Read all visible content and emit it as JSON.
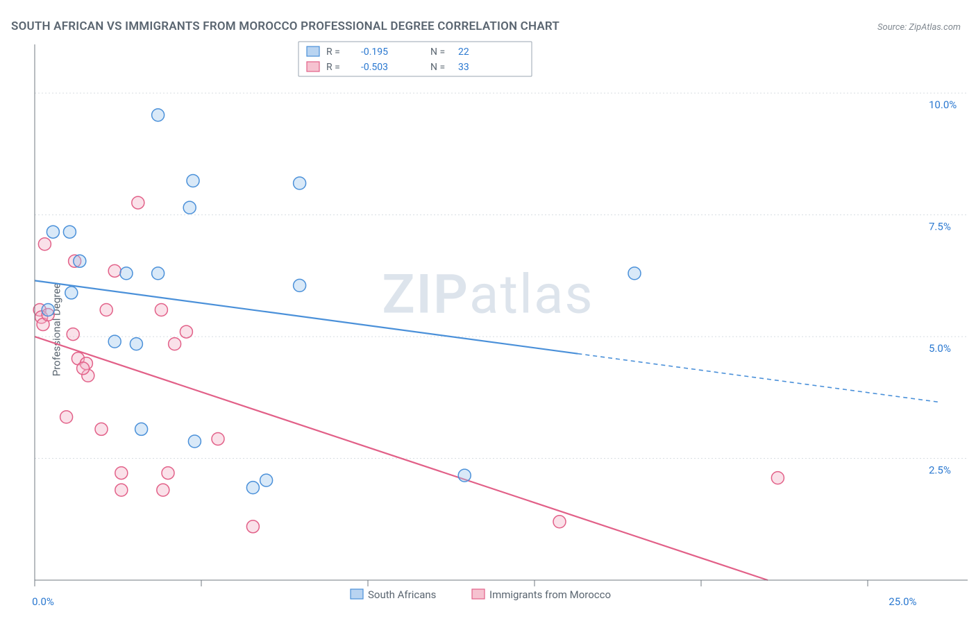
{
  "title": "SOUTH AFRICAN VS IMMIGRANTS FROM MOROCCO PROFESSIONAL DEGREE CORRELATION CHART",
  "source": "Source: ZipAtlas.com",
  "watermark_prefix": "ZIP",
  "watermark_suffix": "atlas",
  "ylabel": "Professional Degree",
  "top_legend": {
    "series": [
      {
        "r_label": "R =",
        "r_value": "-0.195",
        "n_label": "N =",
        "n_value": "22"
      },
      {
        "r_label": "R =",
        "r_value": "-0.503",
        "n_label": "N =",
        "n_value": "33"
      }
    ]
  },
  "bottom_legend": {
    "series1_label": "South Africans",
    "series2_label": "Immigrants from Morocco"
  },
  "chart": {
    "type": "scatter",
    "xlim": [
      0,
      28
    ],
    "ylim": [
      0,
      11
    ],
    "x_ticks": [
      0,
      5,
      10,
      15,
      20,
      25
    ],
    "y_gridlines": [
      2.5,
      5.0,
      7.5,
      10.0
    ],
    "x_labels": [
      {
        "v": 0,
        "t": "0.0%"
      },
      {
        "v": 25.8,
        "t": "25.0%"
      }
    ],
    "y_labels": [
      {
        "v": 2.5,
        "t": "2.5%"
      },
      {
        "v": 5.0,
        "t": "5.0%"
      },
      {
        "v": 7.5,
        "t": "7.5%"
      },
      {
        "v": 10.0,
        "t": "10.0%"
      }
    ],
    "marker_radius": 9,
    "marker_stroke_width": 1.5,
    "marker_fill_opacity": 0.38,
    "trend_line_width": 2.2,
    "trend_dash": "6 5",
    "colors": {
      "blue_stroke": "#4a90d9",
      "blue_fill": "#9cc4ec",
      "pink_stroke": "#e26088",
      "pink_fill": "#f2b1c4",
      "grid": "#d8dde2",
      "axis": "#707880",
      "axis_label": "#2a78d0",
      "text": "#5a6570",
      "bg": "#ffffff"
    },
    "series_blue": {
      "name": "South Africans",
      "trend": {
        "x1": 0,
        "y1": 6.15,
        "x2": 16.3,
        "y2": 4.65,
        "x2_ext": 27.2,
        "y2_ext": 3.65
      },
      "points": [
        [
          0.55,
          7.15
        ],
        [
          1.05,
          7.15
        ],
        [
          1.35,
          6.55
        ],
        [
          0.4,
          5.55
        ],
        [
          1.1,
          5.9
        ],
        [
          2.4,
          4.9
        ],
        [
          3.05,
          4.85
        ],
        [
          2.75,
          6.3
        ],
        [
          3.7,
          6.3
        ],
        [
          3.7,
          9.55
        ],
        [
          4.75,
          8.2
        ],
        [
          4.65,
          7.65
        ],
        [
          3.2,
          3.1
        ],
        [
          4.8,
          2.85
        ],
        [
          6.55,
          1.9
        ],
        [
          7.95,
          6.05
        ],
        [
          7.95,
          8.15
        ],
        [
          6.95,
          2.05
        ],
        [
          12.9,
          2.15
        ],
        [
          18.0,
          6.3
        ]
      ]
    },
    "series_pink": {
      "name": "Immigrants from Morocco",
      "trend": {
        "x1": 0,
        "y1": 5.0,
        "x2": 22.0,
        "y2": 0.0
      },
      "points": [
        [
          0.3,
          6.9
        ],
        [
          0.15,
          5.55
        ],
        [
          0.2,
          5.4
        ],
        [
          0.25,
          5.25
        ],
        [
          0.4,
          5.45
        ],
        [
          1.2,
          6.55
        ],
        [
          1.15,
          5.05
        ],
        [
          1.3,
          4.55
        ],
        [
          2.4,
          6.35
        ],
        [
          2.15,
          5.55
        ],
        [
          1.55,
          4.45
        ],
        [
          1.6,
          4.2
        ],
        [
          1.45,
          4.35
        ],
        [
          0.95,
          3.35
        ],
        [
          2.0,
          3.1
        ],
        [
          2.6,
          2.2
        ],
        [
          2.6,
          1.85
        ],
        [
          3.8,
          5.55
        ],
        [
          3.1,
          7.75
        ],
        [
          4.2,
          4.85
        ],
        [
          3.85,
          1.85
        ],
        [
          4.0,
          2.2
        ],
        [
          4.55,
          5.1
        ],
        [
          6.55,
          1.1
        ],
        [
          5.5,
          2.9
        ],
        [
          15.75,
          1.2
        ],
        [
          22.3,
          2.1
        ]
      ]
    }
  }
}
